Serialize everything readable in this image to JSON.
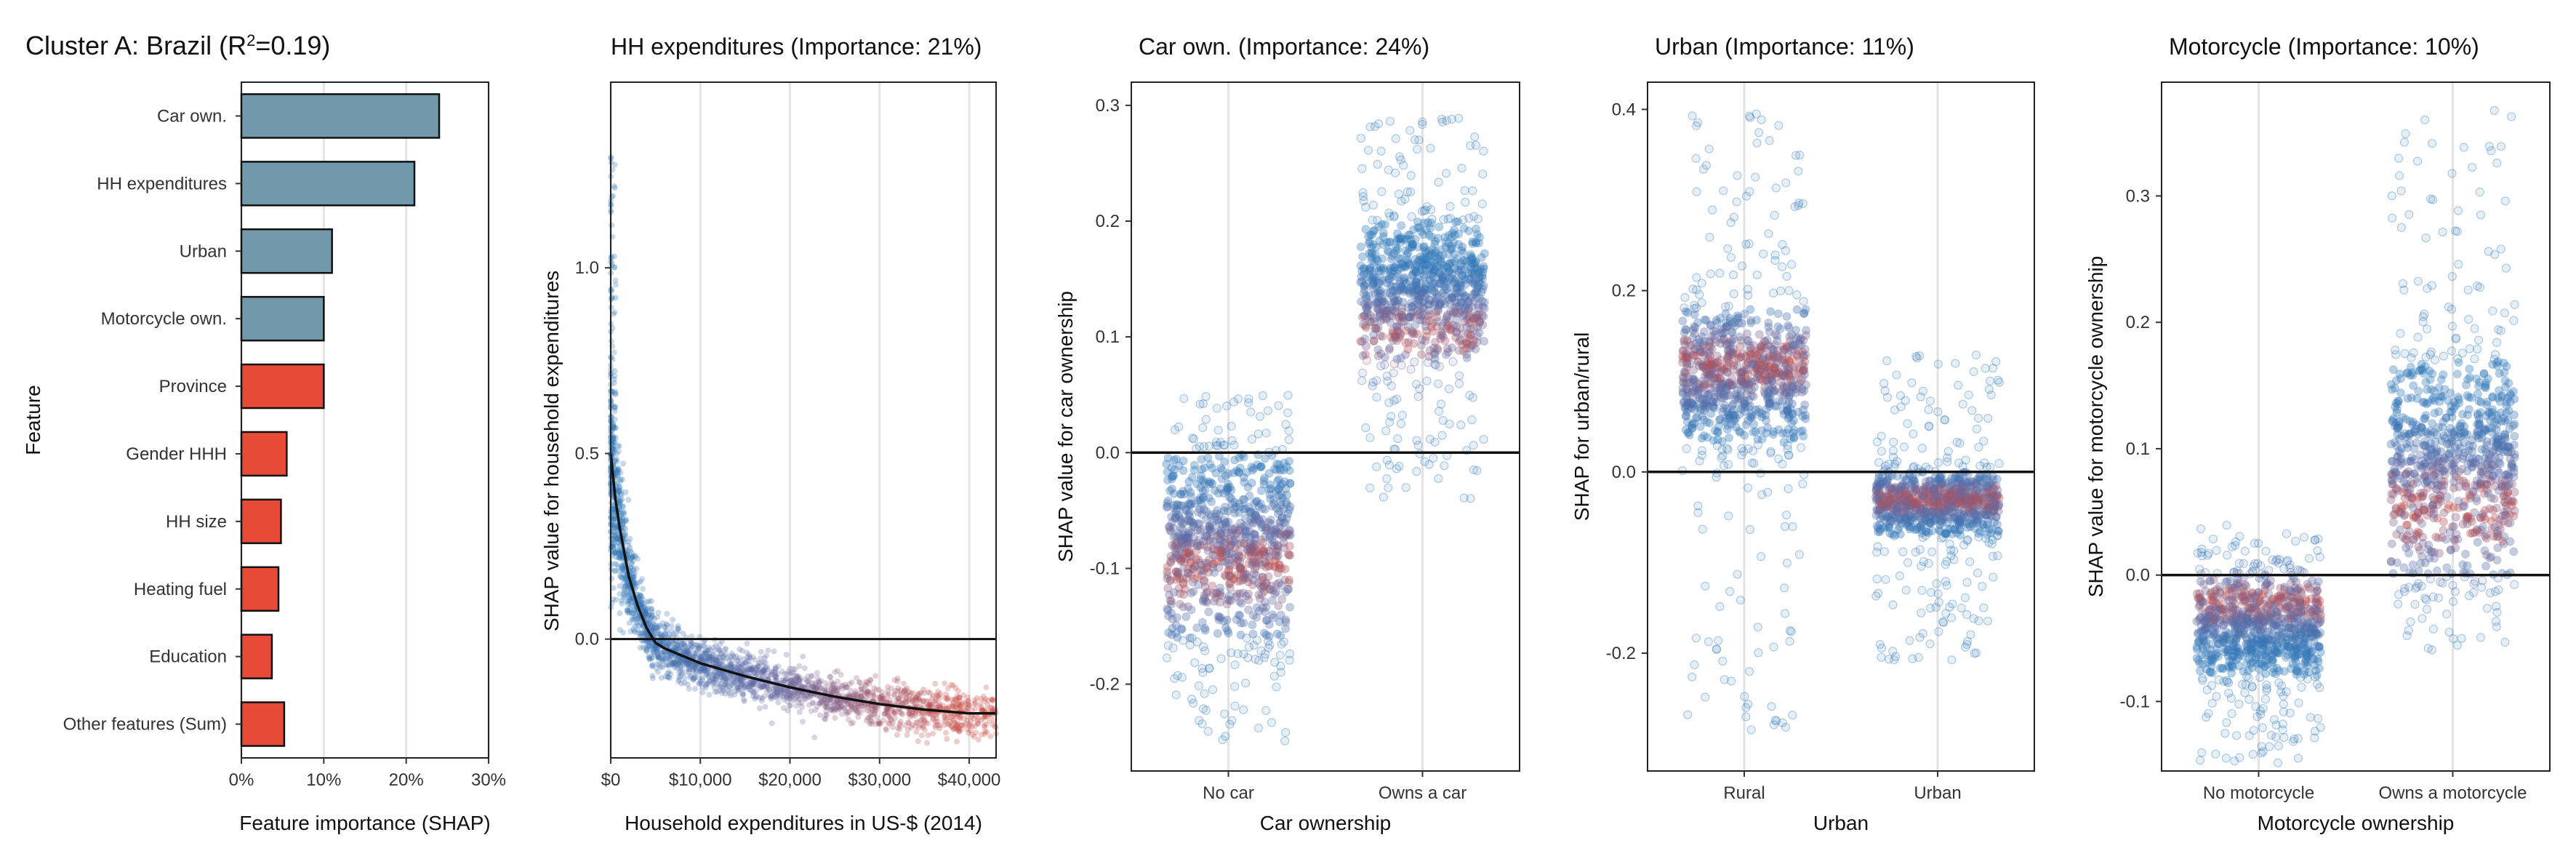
{
  "colors": {
    "bar_grey": "#7299ab",
    "bar_red": "#e84a38",
    "blue": "#2f77b8",
    "mid": "#6a6aa2",
    "red": "#c44a45",
    "grid": "#e3e3e3"
  },
  "chart_data": [
    {
      "type": "bar",
      "title": "Cluster A: Brazil (R",
      "title_sup": "2",
      "title_end": "=0.19)",
      "xlabel": "Feature importance (SHAP)",
      "ylabel": "Feature",
      "xlim": [
        0,
        0.3
      ],
      "xticks": [
        0,
        0.1,
        0.2,
        0.3
      ],
      "xtick_labels": [
        "0%",
        "10%",
        "20%",
        "30%"
      ],
      "categories": [
        "Car own.",
        "HH expenditures",
        "Urban",
        "Motorcycle own.",
        "Province",
        "Gender HHH",
        "HH size",
        "Heating fuel",
        "Education",
        "Other features (Sum)"
      ],
      "values": [
        0.24,
        0.21,
        0.11,
        0.1,
        0.1,
        0.055,
        0.048,
        0.045,
        0.037,
        0.052
      ],
      "groups": [
        "grey",
        "grey",
        "grey",
        "grey",
        "red",
        "red",
        "red",
        "red",
        "red",
        "red"
      ]
    },
    {
      "type": "scatter",
      "title": "HH expenditures (Importance: 21%)",
      "xlabel": "Household expenditures in US-$ (2014)",
      "ylabel": "SHAP value for household expenditures",
      "xlim": [
        0,
        43000
      ],
      "ylim": [
        -0.32,
        1.5
      ],
      "xticks": [
        0,
        10000,
        20000,
        30000,
        40000
      ],
      "xtick_labels": [
        "$0",
        "$10,000",
        "$20,000",
        "$30,000",
        "$40,000"
      ],
      "yticks": [
        0.0,
        0.5,
        1.0
      ],
      "ytick_labels": [
        "0.0",
        "0.5",
        "1.0"
      ],
      "trend": {
        "x": [
          0,
          500,
          1000,
          2000,
          3000,
          4000,
          5000,
          6000,
          8000,
          10000,
          15000,
          20000,
          25000,
          30000,
          35000,
          40000,
          43000
        ],
        "y": [
          0.5,
          0.38,
          0.3,
          0.17,
          0.09,
          0.03,
          -0.01,
          -0.025,
          -0.045,
          -0.065,
          -0.1,
          -0.13,
          -0.155,
          -0.175,
          -0.19,
          -0.2,
          -0.2
        ]
      }
    },
    {
      "type": "scatter",
      "title": "Car own. (Importance: 24%)",
      "xlabel": "Car ownership",
      "ylabel": "SHAP value for car ownership",
      "ylim": [
        -0.275,
        0.32
      ],
      "yticks": [
        -0.2,
        -0.1,
        0.0,
        0.1,
        0.2,
        0.3
      ],
      "ytick_labels": [
        "-0.2",
        "-0.1",
        "0.0",
        "0.1",
        "0.2",
        "0.3"
      ],
      "categories": [
        "No car",
        "Owns a car"
      ],
      "groups": [
        {
          "core": [
            -0.16,
            0.0
          ],
          "range": [
            -0.25,
            0.05
          ],
          "red_center": -0.1
        },
        {
          "core": [
            0.08,
            0.2
          ],
          "range": [
            -0.04,
            0.3
          ],
          "red_center": 0.1
        }
      ]
    },
    {
      "type": "scatter",
      "title": "Urban (Importance: 11%)",
      "xlabel": "Urban",
      "ylabel": "SHAP for urban/rural",
      "ylim": [
        -0.33,
        0.43
      ],
      "yticks": [
        -0.2,
        0.0,
        0.2,
        0.4
      ],
      "ytick_labels": [
        "-0.2",
        "0.0",
        "0.2",
        "0.4"
      ],
      "categories": [
        "Rural",
        "Urban"
      ],
      "groups": [
        {
          "core": [
            0.03,
            0.18
          ],
          "range": [
            -0.29,
            0.4
          ],
          "red_center": 0.12
        },
        {
          "core": [
            -0.07,
            0.0
          ],
          "range": [
            -0.21,
            0.13
          ],
          "red_center": -0.03
        }
      ]
    },
    {
      "type": "scatter",
      "title": "Motorcycle (Importance: 10%)",
      "xlabel": "Motorcycle ownership",
      "ylabel": "SHAP value for motorcycle ownership",
      "ylim": [
        -0.155,
        0.39
      ],
      "yticks": [
        -0.1,
        0.0,
        0.1,
        0.2,
        0.3
      ],
      "ytick_labels": [
        "-0.1",
        "0.0",
        "0.1",
        "0.2",
        "0.3"
      ],
      "categories": [
        "No motorcycle",
        "Owns a motorcycle"
      ],
      "groups": [
        {
          "core": [
            -0.08,
            0.0
          ],
          "range": [
            -0.15,
            0.04
          ],
          "red_center": -0.02
        },
        {
          "core": [
            0.0,
            0.17
          ],
          "range": [
            -0.06,
            0.37
          ],
          "red_center": 0.05
        }
      ]
    }
  ]
}
